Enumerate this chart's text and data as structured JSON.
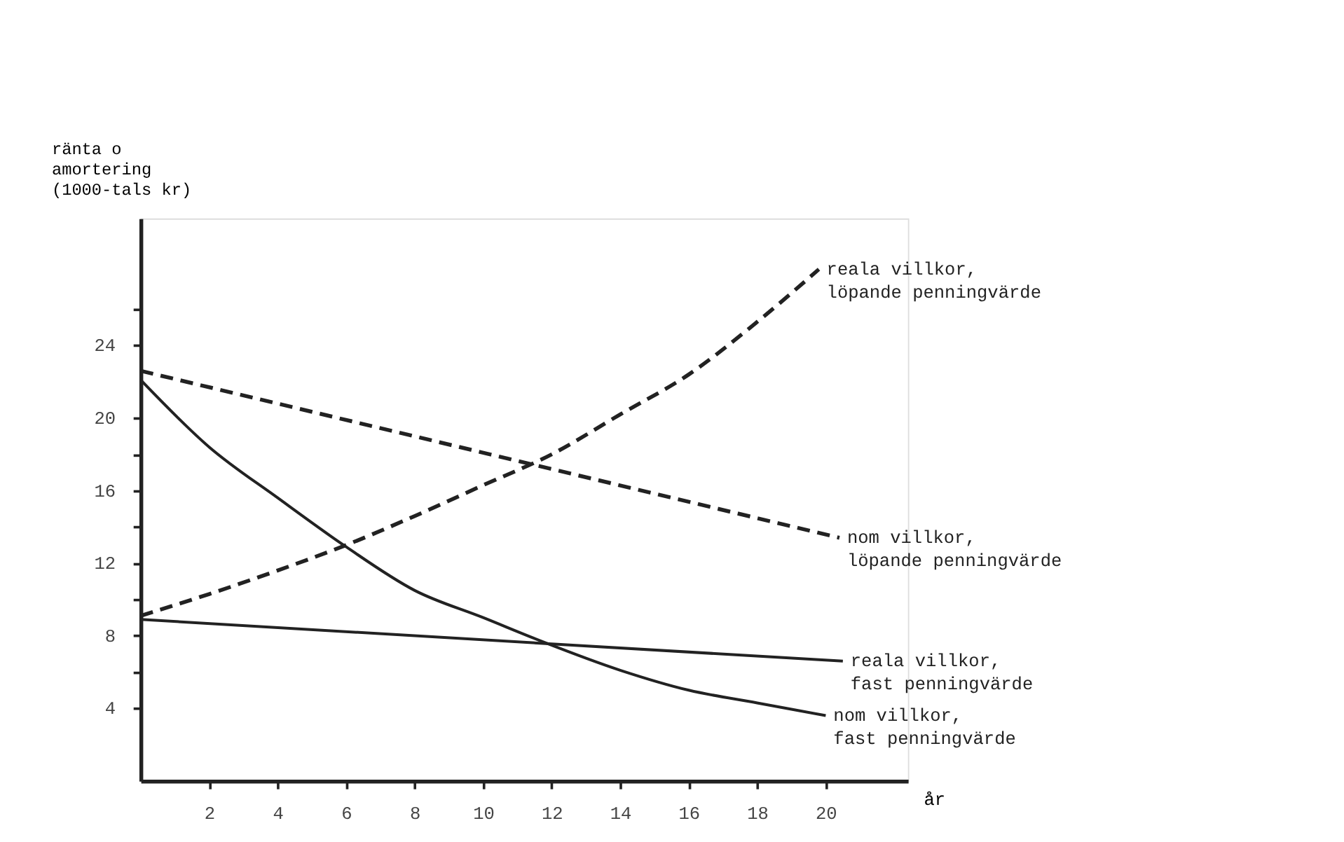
{
  "chart_data": {
    "type": "line",
    "xlabel": "år",
    "ylabel": "ränta o\namortering\n(1000-tals kr)",
    "xlim": [
      0,
      22.4
    ],
    "ylim": [
      0,
      31
    ],
    "xticks": [
      2,
      4,
      6,
      8,
      10,
      12,
      14,
      16,
      18,
      20
    ],
    "yticks": [
      4,
      {
        "value": 6,
        "label": null
      },
      8,
      {
        "value": 10,
        "label": null
      },
      12,
      {
        "value": 14,
        "label": null
      },
      16,
      {
        "value": 18,
        "label": null
      },
      20,
      24,
      {
        "value": 26,
        "label": null
      }
    ],
    "grid": false,
    "marker": "none",
    "legend": false,
    "series": [
      {
        "name": "reala villkor,\nlöpande penningvärde",
        "color": "#222222",
        "line_style": "dashed",
        "x": [
          0,
          2,
          4,
          6,
          8,
          10,
          12,
          14,
          16,
          18,
          19.8
        ],
        "values": [
          9.1,
          10.3,
          11.6,
          13.0,
          14.6,
          16.3,
          18.0,
          20.2,
          22.4,
          25.3,
          28.2
        ]
      },
      {
        "name": "nom villkor,\nlöpande penningvärde",
        "color": "#222222",
        "line_style": "dashed",
        "x": [
          0,
          20.4
        ],
        "values": [
          22.6,
          13.4
        ]
      },
      {
        "name": "reala villkor,\nfast penningvärde",
        "color": "#222222",
        "line_style": "solid",
        "x": [
          0,
          20.5
        ],
        "values": [
          8.9,
          6.6
        ]
      },
      {
        "name": "nom villkor,\nfast penningvärde",
        "color": "#222222",
        "line_style": "solid",
        "x": [
          0,
          2,
          4,
          6,
          8,
          10,
          11.7,
          14,
          16,
          18,
          20
        ],
        "values": [
          22.1,
          18.4,
          15.6,
          12.9,
          10.5,
          9.0,
          7.7,
          6.1,
          5.0,
          4.3,
          3.6
        ]
      }
    ]
  }
}
